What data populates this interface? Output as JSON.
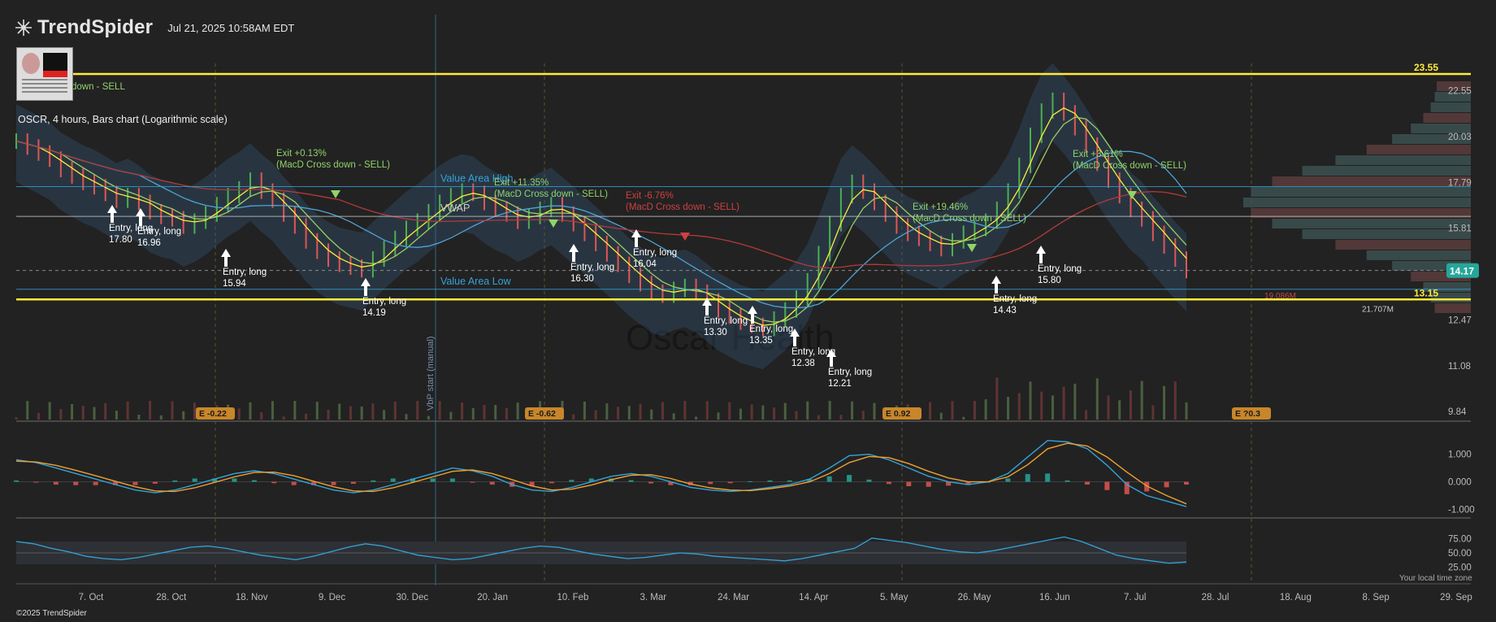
{
  "header": {
    "brand": "TrendSpider",
    "timestamp": "Jul 21, 2025 10:58AM EDT",
    "series_title": "OSCR, 4 hours, Bars chart (Logarithmic scale)",
    "watermark": "Oscar Health",
    "thumb_name": "thumbnail-image"
  },
  "footer": {
    "copyright": "©2025 TrendSpider",
    "local_time": "Your local time zone"
  },
  "colors": {
    "background": "#222222",
    "up": "#4caf50",
    "down": "#e05555",
    "yellow": "#ffeb3b",
    "teal": "#26a69a",
    "blue": "#35a3d8",
    "orange": "#f0a030"
  },
  "chart_data": [
    {
      "type": "line",
      "title": "OSCR, 4 hours, Bars chart (Logarithmic scale)",
      "y_scale": "log",
      "y_ticks": [
        "22.55",
        "20.03",
        "17.79",
        "15.81",
        "12.47",
        "11.08",
        "9.84"
      ],
      "x_ticks": [
        "7. Oct",
        "28. Oct",
        "18. Nov",
        "9. Dec",
        "30. Dec",
        "20. Jan",
        "10. Feb",
        "3. Mar",
        "24. Mar",
        "14. Apr",
        "5. May",
        "26. May",
        "16. Jun",
        "7. Jul",
        "28. Jul",
        "18. Aug",
        "8. Sep",
        "29. Sep"
      ],
      "close_series": [
        19.8,
        19.5,
        19.2,
        18.9,
        18.4,
        18.1,
        17.8,
        17.6,
        17.3,
        17.0,
        17.2,
        16.9,
        16.5,
        16.3,
        16.2,
        15.9,
        16.1,
        16.4,
        16.8,
        17.2,
        17.5,
        17.9,
        17.4,
        17.0,
        16.4,
        15.9,
        15.3,
        14.9,
        14.6,
        14.4,
        14.3,
        14.2,
        14.6,
        15.0,
        15.4,
        15.8,
        16.1,
        16.5,
        16.9,
        17.2,
        17.4,
        17.3,
        16.9,
        16.6,
        16.4,
        16.1,
        16.3,
        16.6,
        16.8,
        16.4,
        16.0,
        15.6,
        15.2,
        14.8,
        14.4,
        14.0,
        13.7,
        13.4,
        13.3,
        13.5,
        13.6,
        13.4,
        13.1,
        12.8,
        12.6,
        12.4,
        12.3,
        12.2,
        12.5,
        12.8,
        13.2,
        13.8,
        14.8,
        16.0,
        17.2,
        17.8,
        17.4,
        16.9,
        16.4,
        15.9,
        15.6,
        15.4,
        15.2,
        15.0,
        15.3,
        15.6,
        15.8,
        16.1,
        16.6,
        17.4,
        18.6,
        20.1,
        21.4,
        22.0,
        21.3,
        20.5,
        19.6,
        18.7,
        17.9,
        17.2,
        16.6,
        16.2,
        15.6,
        15.1,
        14.6,
        14.17
      ],
      "horizontal_levels": [
        {
          "label": "23.55",
          "value": 23.55,
          "color": "#ffeb3b"
        },
        {
          "label": "13.15",
          "value": 13.15,
          "color": "#ffeb3b"
        },
        {
          "label": "Value Area High",
          "value": 17.6,
          "color": "#35a3d8"
        },
        {
          "label": "VWAP",
          "value": 16.3,
          "color": "#cccccc"
        },
        {
          "label": "Value Area Low",
          "value": 13.5,
          "color": "#35a3d8"
        }
      ],
      "last_price": {
        "label": "14.17",
        "value": 14.17
      },
      "volume_profile_labels": [
        "21.707M",
        "19.086M"
      ],
      "earnings_markers": [
        {
          "label": "E -0.22",
          "date": "Nov 7"
        },
        {
          "label": "E -0.62",
          "date": "Feb 7"
        },
        {
          "label": "E 0.92",
          "date": "May 1"
        },
        {
          "label": "E ?0.3",
          "date": "Aug 6"
        }
      ],
      "vertical_marker_label": "VbP start (manual)",
      "signals": [
        {
          "text": "Exit +0.13%",
          "subtext": "(MacD Cross down - SELL)",
          "kind": "exit"
        },
        {
          "text": "Exit +11.35%",
          "subtext": "(MacD Cross down - SELL)",
          "kind": "exit"
        },
        {
          "text": "Exit +19.46%",
          "subtext": "(MacD Cross down - SELL)",
          "kind": "exit"
        },
        {
          "text": "Exit +3.61%",
          "subtext": "(MacD Cross down - SELL)",
          "kind": "exit"
        },
        {
          "text": "Exit -6.76%",
          "subtext": "(MacD Cross down - SELL)",
          "kind": "loss"
        },
        {
          "text": "Entry, long",
          "price": "17.80"
        },
        {
          "text": "Entry, long",
          "price": "16.96"
        },
        {
          "text": "Entry, long",
          "price": "15.94"
        },
        {
          "text": "Entry, long",
          "price": "14.19"
        },
        {
          "text": "Entry, long",
          "price": "16.30"
        },
        {
          "text": "Entry, long",
          "price": "16.04"
        },
        {
          "text": "Entry, long",
          "price": "13.30"
        },
        {
          "text": "Entry, long",
          "price": "13.35"
        },
        {
          "text": "Entry, long",
          "price": "12.38"
        },
        {
          "text": "Entry, long",
          "price": "12.21"
        },
        {
          "text": "Entry, long",
          "price": "14.43"
        },
        {
          "text": "Entry, long",
          "price": "15.80"
        }
      ],
      "partial_label": "down - SELL"
    },
    {
      "type": "line",
      "name": "MACD",
      "y_ticks": [
        "1.000",
        "0.000",
        "-1.000"
      ],
      "macd": [
        0.8,
        0.7,
        0.5,
        0.3,
        0.1,
        -0.1,
        -0.3,
        -0.4,
        -0.3,
        -0.1,
        0.1,
        0.3,
        0.4,
        0.3,
        0.1,
        -0.1,
        -0.3,
        -0.4,
        -0.3,
        -0.1,
        0.1,
        0.3,
        0.5,
        0.4,
        0.2,
        -0.1,
        -0.3,
        -0.35,
        -0.2,
        0.0,
        0.2,
        0.3,
        0.2,
        0.0,
        -0.2,
        -0.3,
        -0.35,
        -0.3,
        -0.2,
        -0.1,
        0.1,
        0.5,
        0.95,
        1.0,
        0.8,
        0.5,
        0.2,
        0.0,
        -0.1,
        0.0,
        0.3,
        0.9,
        1.5,
        1.45,
        1.2,
        0.6,
        -0.1,
        -0.5,
        -0.7,
        -0.9
      ],
      "signal": [
        0.75,
        0.72,
        0.6,
        0.42,
        0.22,
        0.02,
        -0.18,
        -0.33,
        -0.35,
        -0.22,
        -0.02,
        0.18,
        0.34,
        0.35,
        0.22,
        0.02,
        -0.18,
        -0.33,
        -0.35,
        -0.22,
        -0.02,
        0.18,
        0.38,
        0.43,
        0.3,
        0.08,
        -0.15,
        -0.3,
        -0.27,
        -0.12,
        0.08,
        0.24,
        0.26,
        0.12,
        -0.08,
        -0.22,
        -0.3,
        -0.32,
        -0.25,
        -0.15,
        0.0,
        0.3,
        0.7,
        0.92,
        0.88,
        0.66,
        0.38,
        0.14,
        0.0,
        0.0,
        0.18,
        0.62,
        1.2,
        1.4,
        1.3,
        0.9,
        0.35,
        -0.15,
        -0.5,
        -0.8
      ]
    },
    {
      "type": "line",
      "name": "RSI",
      "y_ticks": [
        "75.00",
        "50.00",
        "25.00"
      ],
      "values": [
        70,
        66,
        58,
        52,
        44,
        40,
        38,
        42,
        48,
        54,
        60,
        62,
        58,
        52,
        46,
        42,
        38,
        44,
        52,
        60,
        66,
        62,
        54,
        46,
        42,
        38,
        40,
        46,
        52,
        58,
        62,
        60,
        54,
        48,
        44,
        40,
        42,
        46,
        50,
        48,
        44,
        42,
        40,
        38,
        36,
        40,
        46,
        52,
        58,
        76,
        72,
        68,
        62,
        56,
        52,
        50,
        54,
        60,
        66,
        72,
        78,
        70,
        58,
        46,
        40,
        36,
        32,
        34
      ]
    }
  ]
}
